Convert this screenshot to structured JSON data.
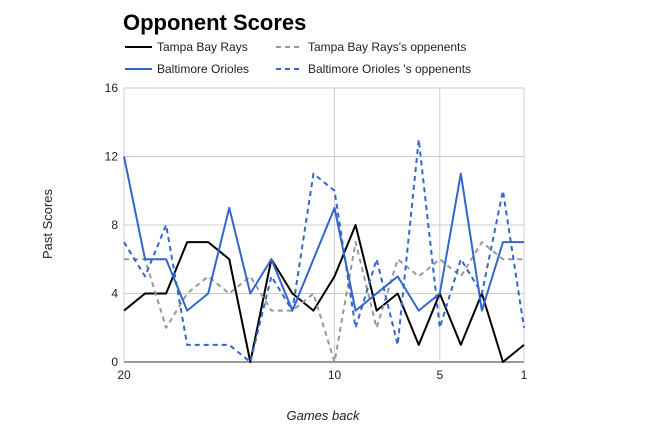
{
  "chart_data": {
    "type": "line",
    "title": "Opponent Scores",
    "xlabel": "Games back",
    "ylabel": "Past Scores",
    "x": [
      20,
      19,
      18,
      17,
      16,
      15,
      14,
      13,
      12,
      11,
      10,
      9,
      8,
      7,
      6,
      5,
      4,
      3,
      2,
      1
    ],
    "x_reversed": true,
    "xlim": [
      20,
      1
    ],
    "xticks": [
      20,
      10,
      5,
      1
    ],
    "ylim": [
      0,
      16
    ],
    "yticks": [
      0,
      4,
      8,
      12,
      16
    ],
    "grid": true,
    "legend_position": "top",
    "series": [
      {
        "name": "Tampa Bay Rays",
        "color": "#000000",
        "dash": "solid",
        "values": [
          3,
          4,
          4,
          7,
          7,
          6,
          0,
          6,
          4,
          3,
          5,
          8,
          3,
          4,
          1,
          4,
          1,
          4,
          0,
          1
        ]
      },
      {
        "name": "Tampa Bay Rays's oppenents",
        "color": "#999999",
        "dash": "dashed",
        "values": [
          6,
          6,
          2,
          4,
          5,
          4,
          5,
          3,
          3,
          4,
          0,
          7,
          2,
          6,
          5,
          6,
          5,
          7,
          6,
          6
        ]
      },
      {
        "name": "Baltimore Orioles",
        "color": "#3366cc",
        "dash": "solid",
        "values": [
          12,
          6,
          6,
          3,
          4,
          9,
          4,
          6,
          3,
          6,
          9,
          3,
          4,
          5,
          3,
          4,
          11,
          3,
          7,
          7
        ]
      },
      {
        "name": "Baltimore Orioles 's oppenents",
        "color": "#3366cc",
        "dash": "dashed",
        "values": [
          7,
          5,
          8,
          1,
          1,
          1,
          0,
          5,
          3,
          11,
          10,
          2,
          6,
          1,
          13,
          2,
          6,
          4,
          10,
          2
        ]
      }
    ]
  }
}
